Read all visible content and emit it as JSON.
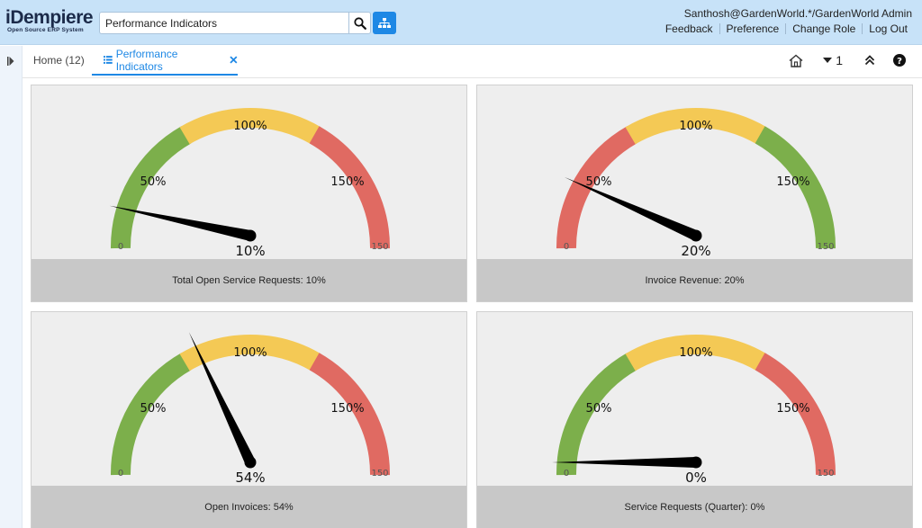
{
  "header": {
    "logo_main": "iDempiere",
    "logo_sub": "Open Source ERP System",
    "search_value": "Performance Indicators",
    "user": "Santhosh@GardenWorld.*/GardenWorld Admin",
    "links": [
      "Feedback",
      "Preference",
      "Change Role",
      "Log Out"
    ]
  },
  "tabs": {
    "home": "Home (12)",
    "active": "Performance Indicators",
    "window_count": "1"
  },
  "colors": {
    "green": "#7caf4b",
    "yellow": "#f4c955",
    "red": "#e06a62",
    "accent": "#1e88e5"
  },
  "gauges": [
    {
      "label": "Total Open Service Requests: 10%",
      "value": 10,
      "value_text": "10%",
      "order": "green-yellow-red"
    },
    {
      "label": "Invoice Revenue: 20%",
      "value": 20,
      "value_text": "20%",
      "order": "red-yellow-green"
    },
    {
      "label": "Open Invoices: 54%",
      "value": 54,
      "value_text": "54%",
      "order": "green-yellow-red"
    },
    {
      "label": "Service Requests (Quarter): 0%",
      "value": 0,
      "value_text": "0%",
      "order": "green-yellow-red"
    }
  ],
  "gauge_scale": {
    "min": "0",
    "max": "150",
    "ticks": [
      "50%",
      "100%",
      "150%"
    ]
  }
}
